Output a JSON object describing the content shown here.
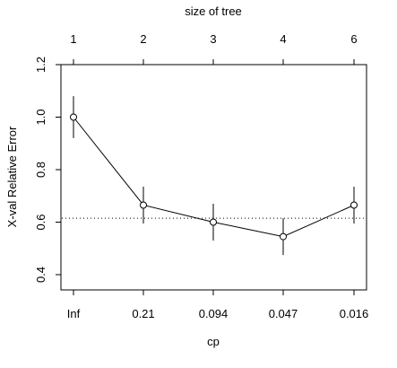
{
  "chart_data": {
    "type": "line",
    "x_labels_bottom": [
      "Inf",
      "0.21",
      "0.094",
      "0.047",
      "0.016"
    ],
    "x_labels_top": [
      "1",
      "2",
      "3",
      "4",
      "6"
    ],
    "xlabel": "cp",
    "top_axis_label": "size of tree",
    "ylabel": "X-val Relative Error",
    "ylim": [
      0.4,
      1.2
    ],
    "yticks": [
      0.4,
      0.6,
      0.8,
      1.0,
      1.2
    ],
    "ytick_labels": [
      "0.4",
      "0.6",
      "0.8",
      "1.0",
      "1.2"
    ],
    "reference_line": 0.615,
    "series": [
      {
        "values": [
          1.0,
          0.665,
          0.6,
          0.545,
          0.665
        ],
        "lower": [
          0.92,
          0.595,
          0.53,
          0.475,
          0.595
        ],
        "upper": [
          1.08,
          0.735,
          0.67,
          0.615,
          0.735
        ]
      }
    ],
    "grid": false,
    "legend": "none"
  }
}
